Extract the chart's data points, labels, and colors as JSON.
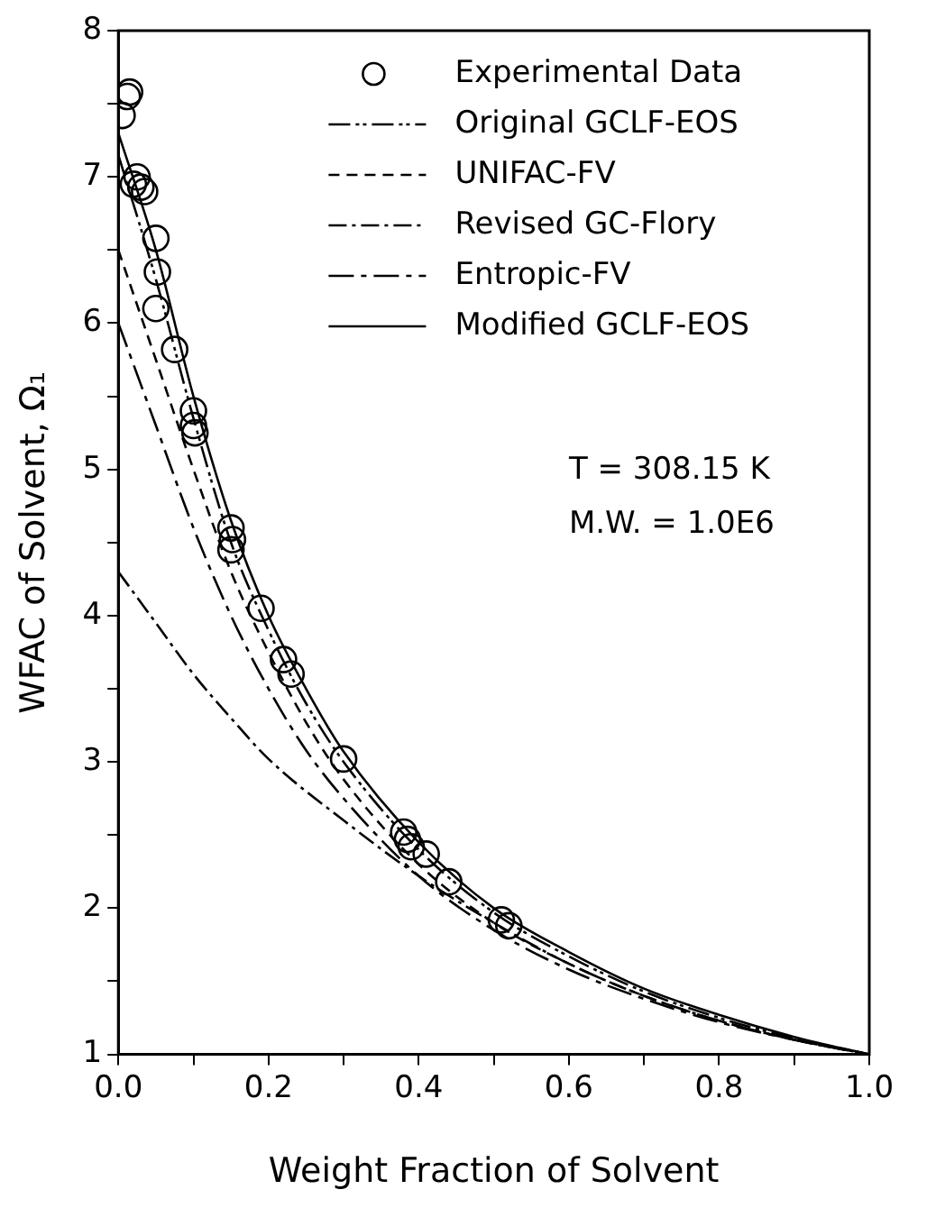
{
  "chart_data": {
    "type": "line",
    "xlabel": "Weight Fraction of Solvent",
    "ylabel": "WFAC of Solvent, Ω₁",
    "xlim": [
      0,
      1
    ],
    "ylim": [
      1,
      8
    ],
    "xticks": [
      {
        "value": 0,
        "label": "0.0"
      },
      {
        "value": 0.1,
        "label": null
      },
      {
        "value": 0.2,
        "label": "0.2"
      },
      {
        "value": 0.3,
        "label": null
      },
      {
        "value": 0.4,
        "label": "0.4"
      },
      {
        "value": 0.5,
        "label": null
      },
      {
        "value": 0.6,
        "label": "0.6"
      },
      {
        "value": 0.7,
        "label": null
      },
      {
        "value": 0.8,
        "label": "0.8"
      },
      {
        "value": 0.9,
        "label": null
      },
      {
        "value": 1,
        "label": "1.0"
      }
    ],
    "yticks": [
      1,
      {
        "value": 1.5,
        "label": null
      },
      2,
      {
        "value": 2.5,
        "label": null
      },
      3,
      {
        "value": 3.5,
        "label": null
      },
      4,
      {
        "value": 4.5,
        "label": null
      },
      5,
      {
        "value": 5.5,
        "label": null
      },
      6,
      {
        "value": 6.5,
        "label": null
      },
      7,
      {
        "value": 7.5,
        "label": null
      },
      8
    ],
    "grid": false,
    "legend": "top right",
    "annotations": [
      "T = 308.15 K",
      "M.W. = 1.0E6"
    ],
    "series": [
      {
        "name": "Experimental Data",
        "type": "scatter",
        "marker": "circle",
        "color": "#000000",
        "x": [
          0.005,
          0.012,
          0.015,
          0.02,
          0.025,
          0.03,
          0.035,
          0.05,
          0.052,
          0.05,
          0.075,
          0.1,
          0.1,
          0.102,
          0.15,
          0.152,
          0.15,
          0.19,
          0.22,
          0.23,
          0.3,
          0.38,
          0.385,
          0.39,
          0.41,
          0.44,
          0.51,
          0.52
        ],
        "values": [
          7.42,
          7.55,
          7.58,
          6.95,
          7.0,
          6.93,
          6.9,
          6.58,
          6.35,
          6.1,
          5.82,
          5.4,
          5.3,
          5.25,
          4.6,
          4.52,
          4.45,
          4.05,
          3.7,
          3.6,
          3.02,
          2.52,
          2.47,
          2.42,
          2.37,
          2.18,
          1.92,
          1.88
        ]
      },
      {
        "name": "Original GCLF-EOS",
        "type": "line",
        "line_style": "dashdotdot",
        "color": "#000000",
        "x": [
          0,
          0.05,
          0.1,
          0.15,
          0.2,
          0.25,
          0.3,
          0.4,
          0.5,
          0.6,
          0.7,
          0.8,
          0.9,
          1
        ],
        "values": [
          7.15,
          6.3,
          5.35,
          4.5,
          3.9,
          3.4,
          3.0,
          2.4,
          1.97,
          1.67,
          1.43,
          1.25,
          1.11,
          1
        ]
      },
      {
        "name": "UNIFAC-FV",
        "type": "line",
        "line_style": "dashed",
        "color": "#000000",
        "x": [
          0,
          0.05,
          0.1,
          0.15,
          0.2,
          0.25,
          0.3,
          0.4,
          0.5,
          0.6,
          0.7,
          0.8,
          0.9,
          1
        ],
        "values": [
          6.5,
          5.75,
          5.0,
          4.3,
          3.75,
          3.27,
          2.88,
          2.3,
          1.9,
          1.62,
          1.4,
          1.23,
          1.1,
          1
        ]
      },
      {
        "name": "Revised GC-Flory",
        "type": "line",
        "line_style": "dashdot",
        "color": "#000000",
        "x": [
          0,
          0.05,
          0.1,
          0.15,
          0.2,
          0.3,
          0.4,
          0.5,
          0.6,
          0.7,
          0.8,
          0.9,
          1
        ],
        "values": [
          4.3,
          3.95,
          3.6,
          3.3,
          3.02,
          2.6,
          2.22,
          1.9,
          1.62,
          1.4,
          1.23,
          1.1,
          1
        ]
      },
      {
        "name": "Entropic-FV",
        "type": "line",
        "line_style": "longdash",
        "color": "#000000",
        "x": [
          0,
          0.05,
          0.1,
          0.15,
          0.2,
          0.25,
          0.3,
          0.4,
          0.5,
          0.6,
          0.7,
          0.8,
          0.9,
          1
        ],
        "values": [
          6.0,
          5.3,
          4.6,
          4.0,
          3.5,
          3.08,
          2.75,
          2.22,
          1.85,
          1.58,
          1.38,
          1.22,
          1.1,
          1
        ]
      },
      {
        "name": "Modified GCLF-EOS",
        "type": "line",
        "line_style": "solid",
        "color": "#000000",
        "x": [
          0,
          0.05,
          0.1,
          0.15,
          0.2,
          0.25,
          0.3,
          0.4,
          0.5,
          0.6,
          0.7,
          0.8,
          0.9,
          1
        ],
        "values": [
          7.3,
          6.5,
          5.5,
          4.65,
          4.0,
          3.5,
          3.07,
          2.45,
          2.0,
          1.7,
          1.45,
          1.27,
          1.12,
          1
        ]
      }
    ]
  }
}
